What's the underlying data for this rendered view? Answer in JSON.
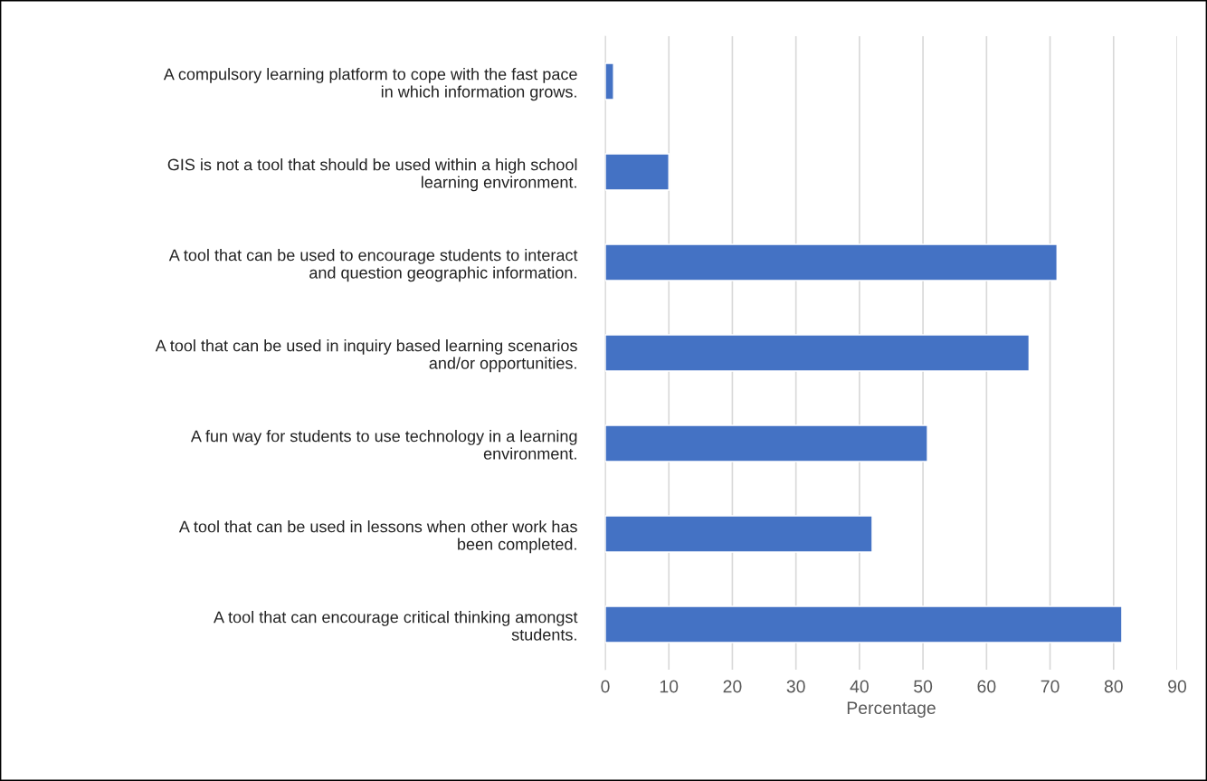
{
  "chart_data": {
    "type": "bar",
    "orientation": "horizontal",
    "xlabel": "Percentage",
    "categories": [
      "A compulsory learning platform to cope with the fast pace\nin which information grows.",
      "GIS is not a tool that should be used within a high school\nlearning environment.",
      "A tool that can be used to encourage students to interact\nand question geographic information.",
      "A tool that can be used in inquiry based learning scenarios\nand/or opportunities.",
      "A fun way for students to use technology in a learning\nenvironment.",
      "A tool that can be used in lessons when other work has\nbeen completed.",
      "A tool that can encourage critical thinking amongst\nstudents."
    ],
    "values": [
      1.3,
      10.0,
      71.1,
      66.7,
      50.7,
      42.0,
      81.3
    ],
    "color": "#4472c4",
    "xlim": [
      0,
      90
    ],
    "xticks": [
      0,
      10,
      20,
      30,
      40,
      50,
      60,
      70,
      80,
      90
    ],
    "grid": "x",
    "legend": false
  }
}
